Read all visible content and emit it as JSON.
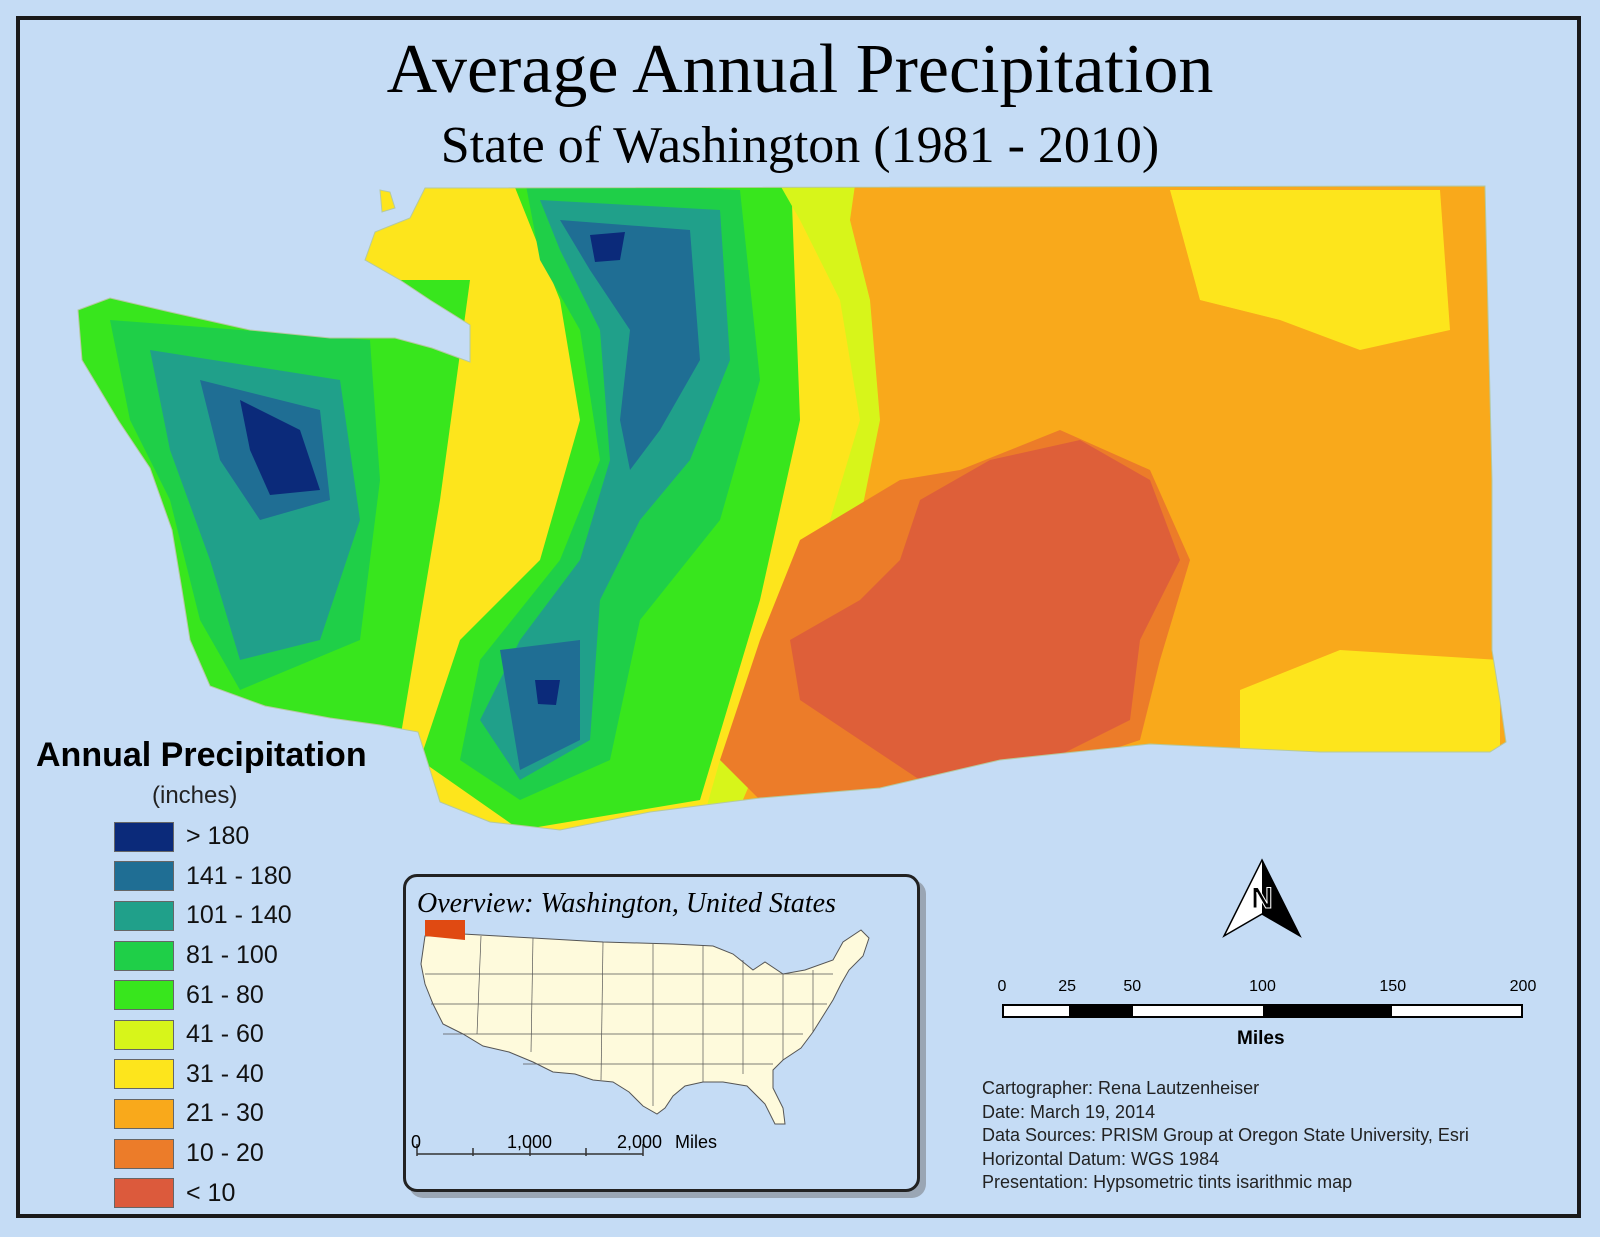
{
  "title": "Average Annual Precipitation",
  "subtitle": "State of Washington (1981 - 2010)",
  "legend": {
    "title": "Annual Precipitation",
    "unit": "(inches)",
    "classes": [
      {
        "label": "> 180",
        "color": "#0b2a7a"
      },
      {
        "label": "141 - 180",
        "color": "#1f6e94"
      },
      {
        "label": "101 - 140",
        "color": "#20a08a"
      },
      {
        "label": "81 - 100",
        "color": "#1fcf48"
      },
      {
        "label": "61 - 80",
        "color": "#38e61d"
      },
      {
        "label": "41 - 60",
        "color": "#d7f51a"
      },
      {
        "label": "31 - 40",
        "color": "#fde51c"
      },
      {
        "label": "21 - 30",
        "color": "#f9a91b"
      },
      {
        "label": "10 - 20",
        "color": "#ec7c29"
      },
      {
        "label": "< 10",
        "color": "#dc5a3c"
      }
    ]
  },
  "overview": {
    "title": "Overview: Washington, United States",
    "highlight_color": "#e04a12",
    "scale_ticks": [
      "0",
      "1,000",
      "2,000"
    ],
    "scale_unit": "Miles"
  },
  "north_arrow": {
    "label": "N"
  },
  "scale_bar": {
    "ticks": [
      "0",
      "25",
      "50",
      "100",
      "150",
      "200"
    ],
    "tick_values": [
      0,
      25,
      50,
      100,
      150,
      200
    ],
    "unit": "Miles"
  },
  "credits": {
    "cartographer": "Cartographer: Rena Lautzenheiser",
    "date": "Date: March 19, 2014",
    "sources": "Data Sources: PRISM Group at Oregon State University, Esri",
    "datum": "Horizontal Datum: WGS 1984",
    "presentation": "Presentation: Hypsometric tints isarithmic map"
  }
}
